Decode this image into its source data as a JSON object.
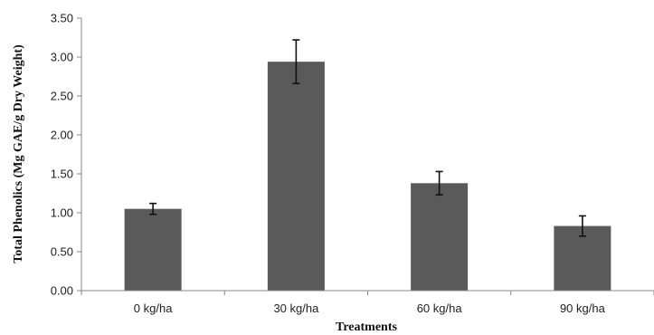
{
  "chart_data": {
    "type": "bar",
    "title": "",
    "xlabel": "Treatments",
    "ylabel": "Total Phenolics (Mg GAE/g Dry Weight)",
    "categories": [
      "0 kg/ha",
      "30 kg/ha",
      "60 kg/ha",
      "90 kg/ha"
    ],
    "values": [
      1.05,
      2.94,
      1.38,
      0.83
    ],
    "error": [
      0.07,
      0.28,
      0.15,
      0.13
    ],
    "ylim": [
      0,
      3.5
    ],
    "yticks": [
      "0.00",
      "0.50",
      "1.00",
      "1.50",
      "2.00",
      "2.50",
      "3.00",
      "3.50"
    ],
    "grid": false,
    "legend": "none",
    "bar_color": "#5a5a5a"
  }
}
